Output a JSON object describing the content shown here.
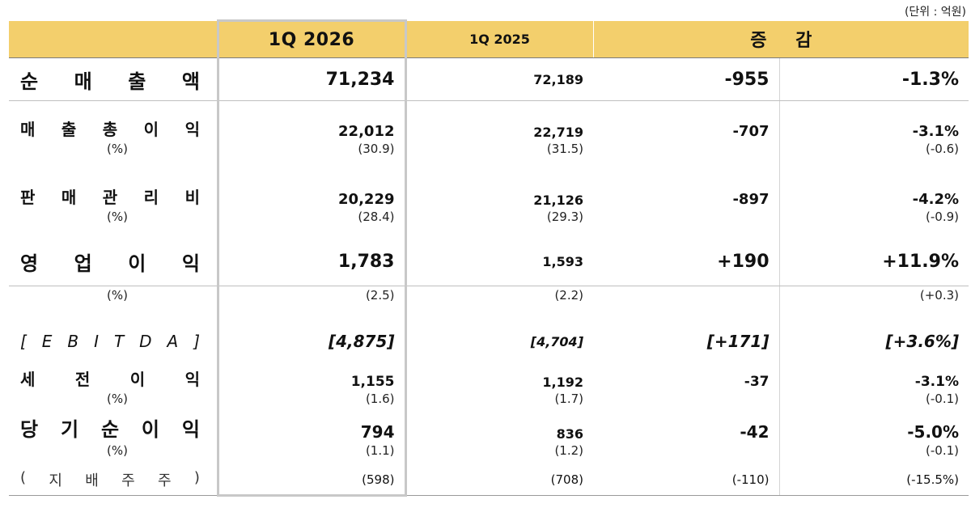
{
  "unit_label": "(단위 : 억원)",
  "header": {
    "current": "1Q 2026",
    "previous": "1Q 2025",
    "change": "증 감"
  },
  "rows": {
    "revenue": {
      "label_chars": [
        "순",
        "매",
        "출",
        "액"
      ],
      "current": "71,234",
      "previous": "72,189",
      "change": "-955",
      "rate": "-1.3%"
    },
    "gross_profit": {
      "label_chars": [
        "매",
        "출",
        "총",
        "이",
        "익"
      ],
      "current": "22,012",
      "previous": "22,719",
      "change": "-707",
      "rate": "-3.1%",
      "pct_label": "(%)",
      "pct_current": "(30.9)",
      "pct_previous": "(31.5)",
      "pct_rate": "(-0.6)"
    },
    "sga": {
      "label_chars": [
        "판",
        "매",
        "관",
        "리",
        "비"
      ],
      "current": "20,229",
      "previous": "21,126",
      "change": "-897",
      "rate": "-4.2%",
      "pct_label": "(%)",
      "pct_current": "(28.4)",
      "pct_previous": "(29.3)",
      "pct_rate": "(-0.9)"
    },
    "operating_profit": {
      "label_chars": [
        "영",
        "업",
        "이",
        "익"
      ],
      "current": "1,783",
      "previous": "1,593",
      "change": "+190",
      "rate": "+11.9%",
      "pct_label": "(%)",
      "pct_current": "(2.5)",
      "pct_previous": "(2.2)",
      "pct_rate": "(+0.3)"
    },
    "ebitda": {
      "label_chars": [
        "[",
        "E",
        "B",
        "I",
        "T",
        "D",
        "A",
        "]"
      ],
      "current": "[4,875]",
      "previous": "[4,704]",
      "change": "[+171]",
      "rate": "[+3.6%]"
    },
    "pretax": {
      "label_chars": [
        "세",
        "전",
        "이",
        "익"
      ],
      "current": "1,155",
      "previous": "1,192",
      "change": "-37",
      "rate": "-3.1%",
      "pct_label": "(%)",
      "pct_current": "(1.6)",
      "pct_previous": "(1.7)",
      "pct_rate": "(-0.1)"
    },
    "net_income": {
      "label_chars": [
        "당",
        "기",
        "순",
        "이",
        "익"
      ],
      "current": "794",
      "previous": "836",
      "change": "-42",
      "rate": "-5.0%",
      "pct_label": "(%)",
      "pct_current": "(1.1)",
      "pct_previous": "(1.2)",
      "pct_rate": "(-0.1)"
    },
    "controlling": {
      "label_chars": [
        "(",
        "지",
        "배",
        "주",
        "주",
        ")"
      ],
      "current": "(598)",
      "previous": "(708)",
      "change": "(-110)",
      "rate": "(-15.5%)"
    }
  }
}
